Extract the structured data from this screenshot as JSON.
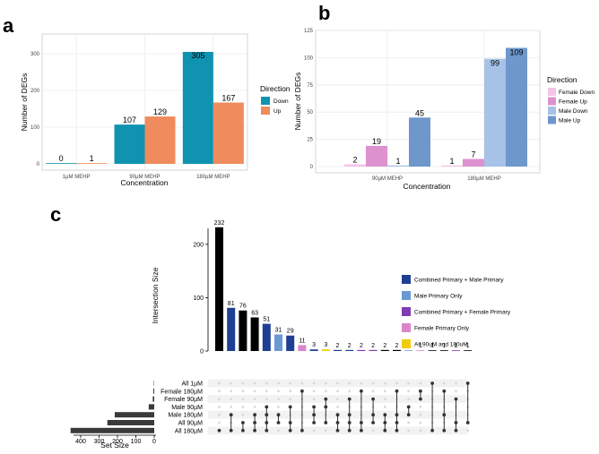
{
  "panels": {
    "a": "a",
    "b": "b",
    "c": "c"
  },
  "chart_data": [
    {
      "type": "bar",
      "panel": "a",
      "categories": [
        "1µM MEHP",
        "90µM MEHP",
        "180µM MEHP"
      ],
      "series": [
        {
          "name": "Down",
          "values": [
            0,
            107,
            305
          ],
          "color": "#0f93b0"
        },
        {
          "name": "Up",
          "values": [
            1,
            129,
            167
          ],
          "color": "#ef8b5c"
        }
      ],
      "xlabel": "Concentration",
      "ylabel": "Number of DEGs",
      "yticks": [
        0,
        100,
        200,
        300
      ],
      "ylim": [
        0,
        320
      ],
      "legend_title": "Direction",
      "grid": true
    },
    {
      "type": "bar",
      "panel": "b",
      "categories": [
        "90µM MEHP",
        "180µM MEHP"
      ],
      "series": [
        {
          "name": "Female Down",
          "values": [
            2,
            1
          ],
          "color": "#f4c4e6"
        },
        {
          "name": "Female Up",
          "values": [
            19,
            7
          ],
          "color": "#dd91cf"
        },
        {
          "name": "Male Down",
          "values": [
            1,
            99
          ],
          "color": "#a6c2e6"
        },
        {
          "name": "Male Up",
          "values": [
            45,
            109
          ],
          "color": "#6e97cc"
        }
      ],
      "xlabel": "Concentration",
      "ylabel": "Number of DEGs",
      "yticks": [
        0,
        25,
        50,
        75,
        100,
        125
      ],
      "ylim": [
        0,
        125
      ],
      "legend_title": "Direction",
      "grid": true
    },
    {
      "type": "bar",
      "panel": "c",
      "subtype": "upset",
      "sets": [
        "All 1µM",
        "Female 180µM",
        "Female 90µM",
        "Male 90µM",
        "Male 180µM",
        "All 90µM",
        "All 180µM"
      ],
      "set_sizes": [
        2,
        5,
        8,
        30,
        215,
        255,
        455
      ],
      "set_size_label": "Set Size",
      "set_size_ticks": [
        400,
        300,
        200,
        100,
        0
      ],
      "intersection_label": "Intersection Size",
      "yticks": [
        0,
        100,
        200
      ],
      "ylim": [
        0,
        250
      ],
      "values": [
        232,
        81,
        76,
        63,
        51,
        31,
        29,
        11,
        3,
        3,
        2,
        2,
        2,
        2,
        2,
        2,
        1,
        1,
        1,
        1,
        1,
        1
      ],
      "groups": [
        "none",
        "cm",
        "none",
        "none",
        "cm",
        "m",
        "cm",
        "f",
        "cm",
        "all",
        "cm",
        "cm",
        "cf",
        "cf",
        "none",
        "none",
        "m",
        "f",
        "none",
        "none",
        "cf",
        "none"
      ],
      "members": [
        [
          6
        ],
        [
          4,
          6
        ],
        [
          5,
          6
        ],
        [
          4,
          5,
          6
        ],
        [
          3,
          4,
          5,
          6
        ],
        [
          4,
          5
        ],
        [
          3,
          5,
          6
        ],
        [
          1,
          6
        ],
        [
          3,
          4,
          5
        ],
        [
          2,
          3,
          5
        ],
        [
          4,
          5,
          6
        ],
        [
          2,
          4,
          5,
          6
        ],
        [
          1,
          5,
          6
        ],
        [
          2,
          4,
          5
        ],
        [
          4,
          5,
          6
        ],
        [
          1,
          4,
          5,
          6
        ],
        [
          3,
          4
        ],
        [
          1,
          2
        ],
        [
          0,
          6
        ],
        [
          1,
          4,
          6
        ],
        [
          2,
          5,
          6
        ],
        [
          0,
          5
        ]
      ],
      "legend": [
        {
          "key": "cm",
          "label": "Combined Primary + Male Primary",
          "color": "#1f3f94"
        },
        {
          "key": "m",
          "label": "Male Primary Only",
          "color": "#6a99d3"
        },
        {
          "key": "cf",
          "label": "Combined Primary + Female Primary",
          "color": "#7f3db3"
        },
        {
          "key": "f",
          "label": "Female Primary Only",
          "color": "#da86cc"
        },
        {
          "key": "all",
          "label": "All 90uM and 180uM",
          "color": "#f1cc08"
        }
      ],
      "default_color": "#000000"
    }
  ]
}
